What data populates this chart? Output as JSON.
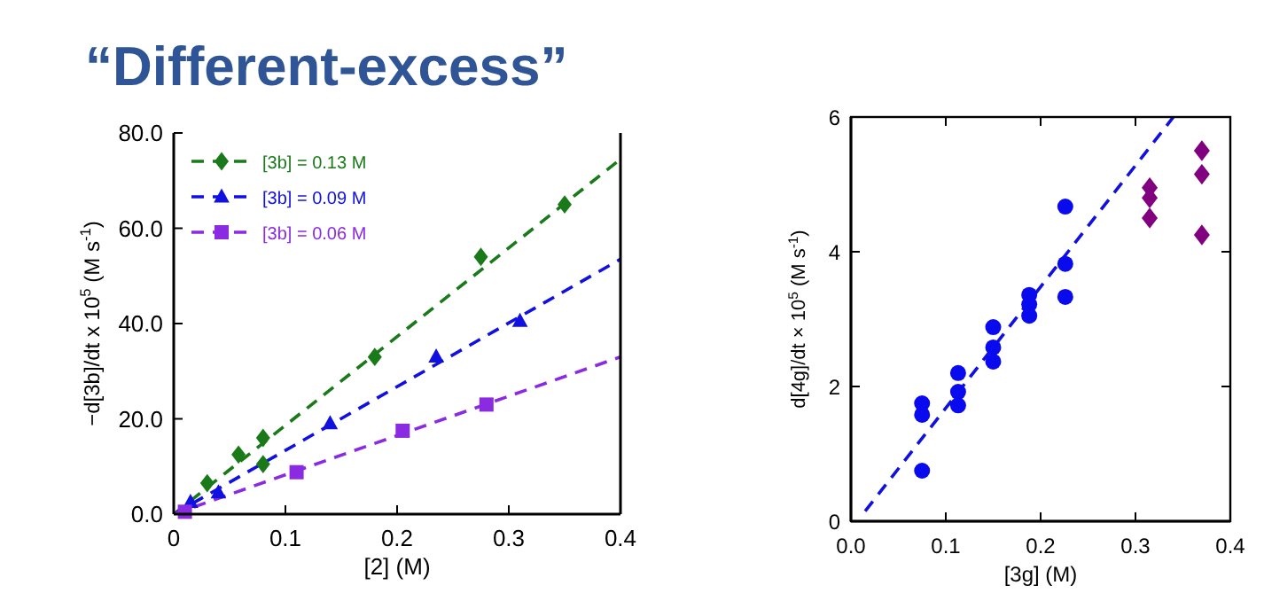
{
  "chart_data": [
    {
      "type": "scatter",
      "title": "“Different-excess”",
      "xlabel": "[2] (M)",
      "ylabel": "−d[3b]/dt x 10$^{5}$ (M s$^{-1}$)",
      "xlim": [
        0,
        0.4
      ],
      "ylim": [
        0,
        80
      ],
      "xticks": [
        0,
        0.1,
        0.2,
        0.3,
        0.4
      ],
      "yticks": [
        {
          "value": 0,
          "label": "0.0"
        },
        {
          "value": 20,
          "label": "20.0"
        },
        {
          "value": 40,
          "label": "40.0"
        },
        {
          "value": 60,
          "label": "60.0"
        },
        {
          "value": 80,
          "label": "80.0"
        }
      ],
      "legend": "top left",
      "grid": false,
      "series": [
        {
          "name": "[3b] = 0.13 M",
          "color": "#1a7a1a",
          "marker": "diamond",
          "x": [
            0.03,
            0.058,
            0.08,
            0.08,
            0.18,
            0.275,
            0.35
          ],
          "values": [
            6.5,
            12.5,
            16,
            10.5,
            33,
            54,
            65
          ]
        },
        {
          "name": "[3b] = 0.09 M",
          "color": "#1010e0",
          "marker": "triangle",
          "x": [
            0.015,
            0.04,
            0.14,
            0.235,
            0.31
          ],
          "values": [
            2.5,
            4.5,
            19,
            33,
            40.5
          ]
        },
        {
          "name": "[3b] = 0.06 M",
          "color": "#8a2be2",
          "marker": "square",
          "x": [
            0.01,
            0.11,
            0.205,
            0.28
          ],
          "values": [
            0.5,
            8.8,
            17.5,
            23
          ]
        },
        {
          "type": "line",
          "color": "#1a7a1a",
          "line_style": "dashed",
          "x": [
            0,
            0.4
          ],
          "values": [
            0,
            74.5
          ]
        },
        {
          "type": "line",
          "color": "#1010e0",
          "line_style": "dashed",
          "x": [
            0,
            0.4
          ],
          "values": [
            0,
            53.5
          ]
        },
        {
          "type": "line",
          "color": "#8a2be2",
          "line_style": "dashed",
          "x": [
            0,
            0.4
          ],
          "values": [
            0,
            33
          ]
        }
      ]
    },
    {
      "type": "scatter",
      "xlabel": "[3g] (M)",
      "ylabel": "d[4g]/dt × 10$^{5}$ (M s$^{-1}$)",
      "xlim": [
        0,
        0.4
      ],
      "ylim": [
        0,
        6
      ],
      "xticks": [
        {
          "value": 0,
          "label": "0.0"
        },
        0.1,
        0.2,
        0.3,
        0.4
      ],
      "yticks": [
        0,
        2,
        4,
        6
      ],
      "grid": false,
      "series": [
        {
          "color": "#0a0aee",
          "marker": "circle",
          "x": [
            0.075,
            0.075,
            0.075,
            0.113,
            0.113,
            0.113,
            0.15,
            0.15,
            0.15,
            0.188,
            0.188,
            0.188,
            0.226,
            0.226,
            0.226
          ],
          "values": [
            1.75,
            1.58,
            0.75,
            2.2,
            1.92,
            1.72,
            2.88,
            2.58,
            2.37,
            3.36,
            3.22,
            3.05,
            4.67,
            3.82,
            3.33
          ]
        },
        {
          "color": "#800080",
          "marker": "diamond",
          "x": [
            0.315,
            0.315,
            0.315,
            0.37,
            0.37,
            0.37
          ],
          "values": [
            4.95,
            4.8,
            4.5,
            5.5,
            5.15,
            4.25
          ]
        },
        {
          "type": "line",
          "color": "#1010e0",
          "line_style": "dashed",
          "x": [
            0.015,
            0.34
          ],
          "values": [
            0.15,
            6
          ]
        }
      ]
    }
  ]
}
